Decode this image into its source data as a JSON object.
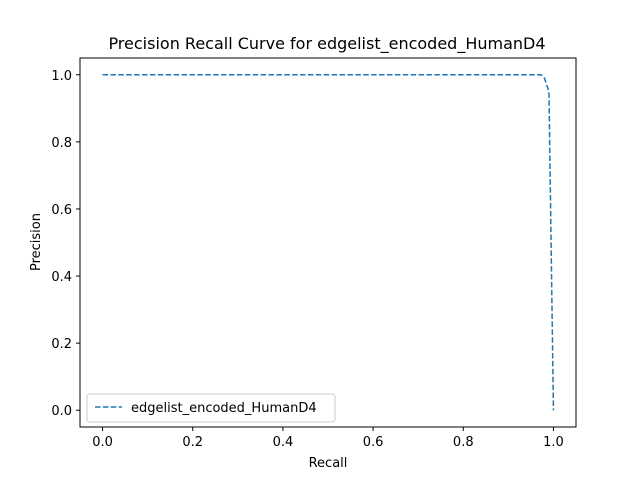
{
  "chart_data": {
    "type": "line",
    "title": "Precision Recall Curve for edgelist_encoded_HumanD4",
    "xlabel": "Recall",
    "ylabel": "Precision",
    "xlim": [
      -0.05,
      1.05
    ],
    "ylim": [
      -0.05,
      1.05
    ],
    "xticks": [
      0.0,
      0.2,
      0.4,
      0.6,
      0.8,
      1.0
    ],
    "xtick_labels": [
      "0.0",
      "0.2",
      "0.4",
      "0.6",
      "0.8",
      "1.0"
    ],
    "yticks": [
      0.0,
      0.2,
      0.4,
      0.6,
      0.8,
      1.0
    ],
    "ytick_labels": [
      "0.0",
      "0.2",
      "0.4",
      "0.6",
      "0.8",
      "1.0"
    ],
    "grid": false,
    "legend_position": "lower-left",
    "series": [
      {
        "name": "edgelist_encoded_HumanD4",
        "color": "#1f77b4",
        "line_style": "dashed",
        "x": [
          0.0,
          0.97,
          0.975,
          0.98,
          0.985,
          0.99,
          1.0
        ],
        "y": [
          1.0,
          1.0,
          0.998,
          0.99,
          0.97,
          0.95,
          0.0
        ]
      }
    ]
  }
}
